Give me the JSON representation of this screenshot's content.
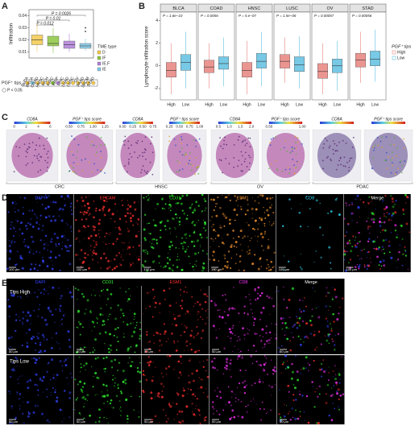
{
  "chart_data": [
    {
      "type": "box",
      "panel": "A",
      "ylabel": "Infiltration",
      "ylim": [
        0.005,
        0.045
      ],
      "yticks": [
        0.01,
        0.02,
        0.03,
        0.04
      ],
      "legend_title": "TME type",
      "series": [
        {
          "name": "D",
          "color": "#f2c94c",
          "stats": {
            "min": 0.01,
            "q1": 0.016,
            "median": 0.02,
            "q3": 0.024,
            "max": 0.034
          }
        },
        {
          "name": "IF",
          "color": "#8cc63f",
          "stats": {
            "min": 0.009,
            "q1": 0.015,
            "median": 0.017,
            "q3": 0.023,
            "max": 0.03
          }
        },
        {
          "name": "IE.F",
          "color": "#b07fd8",
          "stats": {
            "min": 0.01,
            "q1": 0.013,
            "median": 0.016,
            "q3": 0.019,
            "max": 0.025
          }
        },
        {
          "name": "IE",
          "color": "#7fc8e8",
          "stats": {
            "min": 0.011,
            "q1": 0.013,
            "median": 0.015,
            "q3": 0.017,
            "max": 0.021
          },
          "outliers": [
            0.027,
            0.03
          ]
        }
      ],
      "annotations": [
        "P = 0.0026",
        "P = 0.01",
        "P = 0.012"
      ],
      "tips": {
        "label": "PGF⁺ tips",
        "note": "P < 0.05",
        "cancers": [
          "BLCA",
          "BRCA",
          "COAD",
          "HNSC",
          "KICH",
          "KIRC",
          "KIRP",
          "LIHC",
          "LUAD",
          "LUSC",
          "OV",
          "PAAD",
          "SKCM",
          "STAD"
        ],
        "colors": [
          "#f2c94c",
          "#7fc8e8",
          "#f2c94c",
          "#f2c94c",
          "#f2c94c",
          "#8cc63f",
          "#b07fd8",
          "#f2c94c",
          "#f2c94c",
          "#f2c94c",
          "#f2c94c",
          "#f2c94c",
          "#f2c94c",
          "#f2c94c"
        ]
      }
    },
    {
      "type": "box",
      "panel": "B",
      "ylabel": "Lymphocyte infiltration score",
      "ylim": [
        -3,
        4.6
      ],
      "yticks": [
        -2,
        0,
        2,
        4
      ],
      "categories": [
        "High",
        "Low"
      ],
      "legend_title": "PGF⁺ tips",
      "series": [
        {
          "name": "High",
          "color": "#e8837e"
        },
        {
          "name": "Low",
          "color": "#5fc0e0"
        }
      ],
      "facets": [
        {
          "title": "BLCA",
          "p": "P = 1.6e−10",
          "boxes": [
            {
              "min": -2.5,
              "q1": -1.0,
              "median": -0.4,
              "q3": 0.3,
              "max": 2.0
            },
            {
              "min": -2.0,
              "q1": -0.4,
              "median": 0.3,
              "q3": 1.0,
              "max": 3.0
            }
          ]
        },
        {
          "title": "COAD",
          "p": "P = 0.0056",
          "boxes": [
            {
              "min": -2.0,
              "q1": -0.6,
              "median": -0.1,
              "q3": 0.5,
              "max": 2.0
            },
            {
              "min": -1.8,
              "q1": -0.3,
              "median": 0.2,
              "q3": 0.8,
              "max": 2.5
            }
          ]
        },
        {
          "title": "HNSC",
          "p": "P = 5.e−07",
          "boxes": [
            {
              "min": -2.5,
              "q1": -1.0,
              "median": -0.4,
              "q3": 0.3,
              "max": 2.2
            },
            {
              "min": -1.8,
              "q1": -0.2,
              "median": 0.4,
              "q3": 1.1,
              "max": 3.0
            }
          ]
        },
        {
          "title": "LUSC",
          "p": "P = 1.5e−06",
          "boxes": [
            {
              "min": -1.5,
              "q1": -0.2,
              "median": 0.4,
              "q3": 1.0,
              "max": 2.5
            },
            {
              "min": -2.0,
              "q1": -0.5,
              "median": 0.1,
              "q3": 0.8,
              "max": 2.6
            }
          ]
        },
        {
          "title": "OV",
          "p": "P = 0.00057",
          "boxes": [
            {
              "min": -2.5,
              "q1": -1.1,
              "median": -0.5,
              "q3": 0.2,
              "max": 2.0
            },
            {
              "min": -2.2,
              "q1": -0.6,
              "median": 0.0,
              "q3": 0.6,
              "max": 2.2
            }
          ]
        },
        {
          "title": "STAD",
          "p": "P = 0.00056",
          "boxes": [
            {
              "min": -1.5,
              "q1": -0.1,
              "median": 0.5,
              "q3": 1.1,
              "max": 3.0
            },
            {
              "min": -1.4,
              "q1": 0.0,
              "median": 0.6,
              "q3": 1.3,
              "max": 3.2
            }
          ]
        }
      ]
    }
  ],
  "panel_c": {
    "label": "C",
    "groups": [
      {
        "name": "CRC",
        "maps": [
          {
            "title": "CD8A",
            "ticks": [
              "0",
              "2",
              "4",
              "6"
            ]
          },
          {
            "title": "PGF⁺ tips score",
            "ticks": [
              "0.50",
              "0.75",
              "1.00",
              "1.25"
            ]
          }
        ]
      },
      {
        "name": "HNSC",
        "maps": [
          {
            "title": "CD8A",
            "ticks": [
              "0.00",
              "0.25",
              "0.50",
              "0.75"
            ]
          },
          {
            "title": "PGF⁺ tips score",
            "ticks": [
              "0.25",
              "0.50",
              "0.75",
              "1.00"
            ]
          }
        ]
      },
      {
        "name": "OV",
        "maps": [
          {
            "title": "CD8A",
            "ticks": [
              "0.5",
              "1.0",
              "1.5",
              "2.0"
            ]
          },
          {
            "title": "PGF⁺ tips score",
            "ticks": [
              "0.50",
              "1.00"
            ]
          }
        ]
      },
      {
        "name": "PDAC",
        "maps": [
          {
            "title": "CD8A",
            "ticks": []
          },
          {
            "title": "PGF⁺ tips score",
            "ticks": []
          }
        ]
      }
    ]
  },
  "panel_d": {
    "label": "D",
    "scale": "100 μm",
    "channels": [
      {
        "name": "DAPI",
        "color": "#3344ff"
      },
      {
        "name": "EPCAM",
        "color": "#ff3030"
      },
      {
        "name": "CD31",
        "color": "#33ff33"
      },
      {
        "name": "ESM1",
        "color": "#ff9a30"
      },
      {
        "name": "CD8",
        "color": "#30e0ff"
      },
      {
        "name": "Merge",
        "color": "#ffffff"
      }
    ]
  },
  "panel_e": {
    "label": "E",
    "scale": "50 μm",
    "rows": [
      "Tips High",
      "Tips Low"
    ],
    "channels": [
      {
        "name": "DAPI",
        "color": "#3344ff"
      },
      {
        "name": "CD31",
        "color": "#33ff33"
      },
      {
        "name": "ESM1",
        "color": "#ff3030"
      },
      {
        "name": "CD8",
        "color": "#ff33ff"
      },
      {
        "name": "Merge",
        "color": "#ffffff"
      }
    ]
  }
}
